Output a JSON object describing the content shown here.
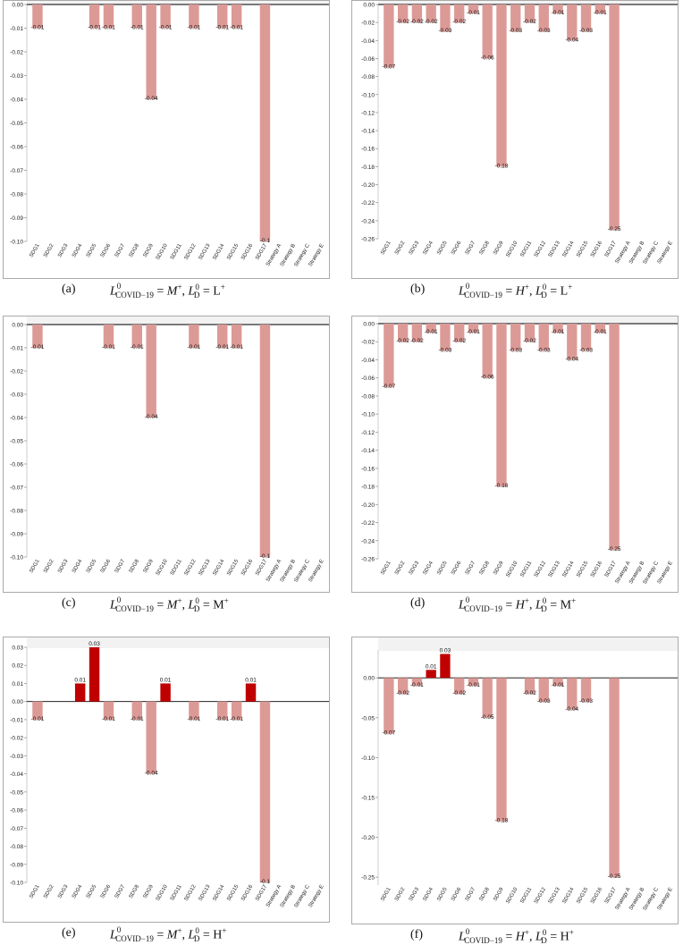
{
  "colors": {
    "neg": "#dc9a96",
    "pos": "#c00000",
    "frame": "#aaaaaa",
    "plot_bg": "#ffffff",
    "top_band": "#f2f2f2",
    "axis_text": "#222222"
  },
  "categories": [
    "SDG1",
    "SDG2",
    "SDG3",
    "SDG4",
    "SDG5",
    "SDG6",
    "SDG7",
    "SDG8",
    "SDG9",
    "SDG10",
    "SDG11",
    "SDG12",
    "SDG13",
    "SDG14",
    "SDG15",
    "SDG16",
    "SDG17",
    "Strategy A",
    "Strategy B",
    "Strategy C",
    "Strategy E"
  ],
  "chart_data": [
    {
      "type": "bar",
      "caption_letter": "(a)",
      "caption": "L⁰COVID−19 = M⁺, L⁰D = L⁺",
      "caption_parts": {
        "covid": "M⁺",
        "d": "L⁺"
      },
      "categories": [
        "SDG1",
        "SDG2",
        "SDG3",
        "SDG4",
        "SDG5",
        "SDG6",
        "SDG7",
        "SDG8",
        "SDG9",
        "SDG10",
        "SDG11",
        "SDG12",
        "SDG13",
        "SDG14",
        "SDG15",
        "SDG16",
        "SDG17",
        "Strategy A",
        "Strategy B",
        "Strategy C",
        "Strategy E"
      ],
      "values": [
        -0.01,
        0,
        0,
        0,
        -0.01,
        -0.01,
        0,
        -0.01,
        -0.04,
        -0.01,
        0,
        -0.01,
        0,
        -0.01,
        -0.01,
        0,
        -0.1,
        0,
        0,
        0,
        0
      ],
      "labels": [
        "-0.01",
        "",
        "",
        "",
        "-0.01",
        "-0.01",
        "",
        "-0.01",
        "-0.04",
        "-0.01",
        "",
        "-0.01",
        "",
        "-0.01",
        "-0.01",
        "",
        "-0.1",
        "",
        "",
        "",
        ""
      ],
      "ylim": [
        -0.1,
        0.0
      ],
      "yticks": [
        0.0,
        -0.01,
        -0.02,
        -0.03,
        -0.04,
        -0.05,
        -0.06,
        -0.07,
        -0.08,
        -0.09,
        -0.1
      ],
      "ytick_labels": [
        "0.00",
        "-0.01",
        "-0.02",
        "-0.03",
        "-0.04",
        "-0.05",
        "-0.06",
        "-0.07",
        "-0.08",
        "-0.09",
        "-0.10"
      ]
    },
    {
      "type": "bar",
      "caption_letter": "(b)",
      "caption": "L⁰COVID−19 = H⁺, L⁰D = L⁺",
      "caption_parts": {
        "covid": "H⁺",
        "d": "L⁺"
      },
      "categories": [
        "SDG1",
        "SDG2",
        "SDG3",
        "SDG4",
        "SDG5",
        "SDG6",
        "SDG7",
        "SDG8",
        "SDG9",
        "SDG10",
        "SDG11",
        "SDG12",
        "SDG13",
        "SDG14",
        "SDG15",
        "SDG16",
        "SDG17",
        "Strategy A",
        "Strategy B",
        "Strategy C",
        "Strategy E"
      ],
      "values": [
        -0.07,
        -0.02,
        -0.02,
        -0.02,
        -0.03,
        -0.02,
        -0.01,
        -0.06,
        -0.18,
        -0.03,
        -0.02,
        -0.03,
        -0.01,
        -0.04,
        -0.03,
        -0.01,
        -0.25,
        0,
        0,
        0,
        0
      ],
      "labels": [
        "-0.07",
        "-0.02",
        "-0.02",
        "-0.02",
        "-0.03",
        "-0.02",
        "-0.01",
        "-0.06",
        "-0.18",
        "-0.03",
        "-0.02",
        "-0.03",
        "-0.01",
        "-0.04",
        "-0.03",
        "-0.01",
        "-0.25",
        "",
        "",
        "",
        ""
      ],
      "ylim": [
        -0.26,
        0.0
      ],
      "yticks": [
        0.0,
        -0.02,
        -0.04,
        -0.06,
        -0.08,
        -0.1,
        -0.12,
        -0.14,
        -0.16,
        -0.18,
        -0.2,
        -0.22,
        -0.24,
        -0.26
      ],
      "ytick_labels": [
        "0.00",
        "-0.02",
        "-0.04",
        "-0.06",
        "-0.08",
        "-0.10",
        "-0.12",
        "-0.14",
        "-0.16",
        "-0.18",
        "-0.20",
        "-0.22",
        "-0.24",
        "-0.26"
      ]
    },
    {
      "type": "bar",
      "caption_letter": "(c)",
      "caption": "L⁰COVID−19 = M⁺, L⁰D = M⁺",
      "caption_parts": {
        "covid": "M⁺",
        "d": "M⁺"
      },
      "categories": [
        "SDG1",
        "SDG2",
        "SDG3",
        "SDG4",
        "SDG5",
        "SDG6",
        "SDG7",
        "SDG8",
        "SDG9",
        "SDG10",
        "SDG11",
        "SDG12",
        "SDG13",
        "SDG14",
        "SDG15",
        "SDG16",
        "SDG17",
        "Strategy A",
        "Strategy B",
        "Strategy C",
        "Strategy E"
      ],
      "values": [
        -0.01,
        0,
        0,
        0,
        0,
        -0.01,
        0,
        -0.01,
        -0.04,
        0,
        0,
        -0.01,
        0,
        -0.01,
        -0.01,
        0,
        -0.1,
        0,
        0,
        0,
        0
      ],
      "labels": [
        "-0.01",
        "",
        "",
        "",
        "",
        "-0.01",
        "",
        "-0.01",
        "-0.04",
        "",
        "",
        "-0.01",
        "",
        "-0.01",
        "-0.01",
        "",
        "-0.1",
        "",
        "",
        "",
        ""
      ],
      "ylim": [
        -0.1,
        0.0
      ],
      "yticks": [
        0.0,
        -0.01,
        -0.02,
        -0.03,
        -0.04,
        -0.05,
        -0.06,
        -0.07,
        -0.08,
        -0.09,
        -0.1
      ],
      "ytick_labels": [
        "0.00",
        "-0.01",
        "-0.02",
        "-0.03",
        "-0.04",
        "-0.05",
        "-0.06",
        "-0.07",
        "-0.08",
        "-0.09",
        "-0.10"
      ]
    },
    {
      "type": "bar",
      "caption_letter": "(d)",
      "caption": "L⁰COVID−19 = H⁺, L⁰D = M⁺",
      "caption_parts": {
        "covid": "H⁺",
        "d": "M⁺"
      },
      "categories": [
        "SDG1",
        "SDG2",
        "SDG3",
        "SDG4",
        "SDG5",
        "SDG6",
        "SDG7",
        "SDG8",
        "SDG9",
        "SDG10",
        "SDG11",
        "SDG12",
        "SDG13",
        "SDG14",
        "SDG15",
        "SDG16",
        "SDG17",
        "Strategy A",
        "Strategy B",
        "Strategy C",
        "Strategy E"
      ],
      "values": [
        -0.07,
        -0.02,
        -0.02,
        -0.01,
        -0.03,
        -0.02,
        -0.01,
        -0.06,
        -0.18,
        -0.03,
        -0.02,
        -0.03,
        -0.01,
        -0.04,
        -0.03,
        -0.01,
        -0.25,
        0,
        0,
        0,
        0
      ],
      "labels": [
        "-0.07",
        "-0.02",
        "-0.02",
        "-0.01",
        "-0.03",
        "-0.02",
        "-0.01",
        "-0.06",
        "-0.18",
        "-0.03",
        "-0.02",
        "-0.03",
        "-0.01",
        "-0.04",
        "-0.03",
        "-0.01",
        "-0.25",
        "",
        "",
        "",
        ""
      ],
      "ylim": [
        -0.26,
        0.0
      ],
      "yticks": [
        0.0,
        -0.02,
        -0.04,
        -0.06,
        -0.08,
        -0.1,
        -0.12,
        -0.14,
        -0.16,
        -0.18,
        -0.2,
        -0.22,
        -0.24,
        -0.26
      ],
      "ytick_labels": [
        "0.00",
        "-0.02",
        "-0.04",
        "-0.06",
        "-0.08",
        "-0.10",
        "-0.12",
        "-0.14",
        "-0.16",
        "-0.18",
        "-0.20",
        "-0.22",
        "-0.24",
        "-0.26"
      ]
    },
    {
      "type": "bar",
      "caption_letter": "(e)",
      "caption": "L⁰COVID−19 = M⁺, L⁰D = H⁺",
      "caption_parts": {
        "covid": "M⁺",
        "d": "H⁺"
      },
      "categories": [
        "SDG1",
        "SDG2",
        "SDG3",
        "SDG4",
        "SDG5",
        "SDG6",
        "SDG7",
        "SDG8",
        "SDG9",
        "SDG10",
        "SDG11",
        "SDG12",
        "SDG13",
        "SDG14",
        "SDG15",
        "SDG16",
        "SDG17",
        "Strategy A",
        "Strategy B",
        "Strategy C",
        "Strategy E"
      ],
      "values": [
        -0.01,
        0,
        0,
        0.01,
        0.03,
        -0.01,
        0,
        -0.01,
        -0.04,
        0.01,
        0,
        -0.01,
        0,
        -0.01,
        -0.01,
        0.01,
        -0.1,
        0,
        0,
        0,
        0
      ],
      "labels": [
        "-0.01",
        "",
        "",
        "0.01",
        "0.03",
        "-0.01",
        "",
        "-0.01",
        "-0.04",
        "0.01",
        "",
        "-0.01",
        "",
        "-0.01",
        "-0.01",
        "0.01",
        "-0.1",
        "",
        "",
        "",
        ""
      ],
      "ylim": [
        -0.1,
        0.03
      ],
      "yticks": [
        0.03,
        0.02,
        0.01,
        0.0,
        -0.01,
        -0.02,
        -0.03,
        -0.04,
        -0.05,
        -0.06,
        -0.07,
        -0.08,
        -0.09,
        -0.1
      ],
      "ytick_labels": [
        "0.03",
        "0.02",
        "0.01",
        "0.00",
        "-0.01",
        "-0.02",
        "-0.03",
        "-0.04",
        "-0.05",
        "-0.06",
        "-0.07",
        "-0.08",
        "-0.09",
        "-0.10"
      ]
    },
    {
      "type": "bar",
      "caption_letter": "(f)",
      "caption": "L⁰COVID−19 = H⁺, L⁰D = H⁺",
      "caption_parts": {
        "covid": "H⁺",
        "d": "H⁺"
      },
      "categories": [
        "SDG1",
        "SDG2",
        "SDG3",
        "SDG4",
        "SDG5",
        "SDG6",
        "SDG7",
        "SDG8",
        "SDG9",
        "SDG10",
        "SDG11",
        "SDG12",
        "SDG13",
        "SDG14",
        "SDG15",
        "SDG16",
        "SDG17",
        "Strategy A",
        "Strategy B",
        "Strategy C",
        "Strategy E"
      ],
      "values": [
        -0.07,
        -0.02,
        -0.01,
        0.01,
        0.03,
        -0.02,
        -0.01,
        -0.05,
        -0.18,
        0,
        -0.02,
        -0.03,
        -0.01,
        -0.04,
        -0.03,
        0,
        -0.25,
        0,
        0,
        0,
        0
      ],
      "labels": [
        "-0.07",
        "-0.02",
        "-0.01",
        "0.01",
        "0.03",
        "-0.02",
        "-0.01",
        "-0.05",
        "-0.18",
        "",
        "-0.02",
        "-0.03",
        "-0.01",
        "-0.04",
        "-0.03",
        "",
        "-0.25",
        "",
        "",
        "",
        ""
      ],
      "ylim": [
        -0.26,
        0.035
      ],
      "yticks": [
        0.0,
        -0.05,
        -0.1,
        -0.15,
        -0.2,
        -0.25
      ],
      "ytick_labels": [
        "0.00",
        "-0.05",
        "-0.10",
        "-0.15",
        "-0.20",
        "-0.25"
      ]
    }
  ]
}
